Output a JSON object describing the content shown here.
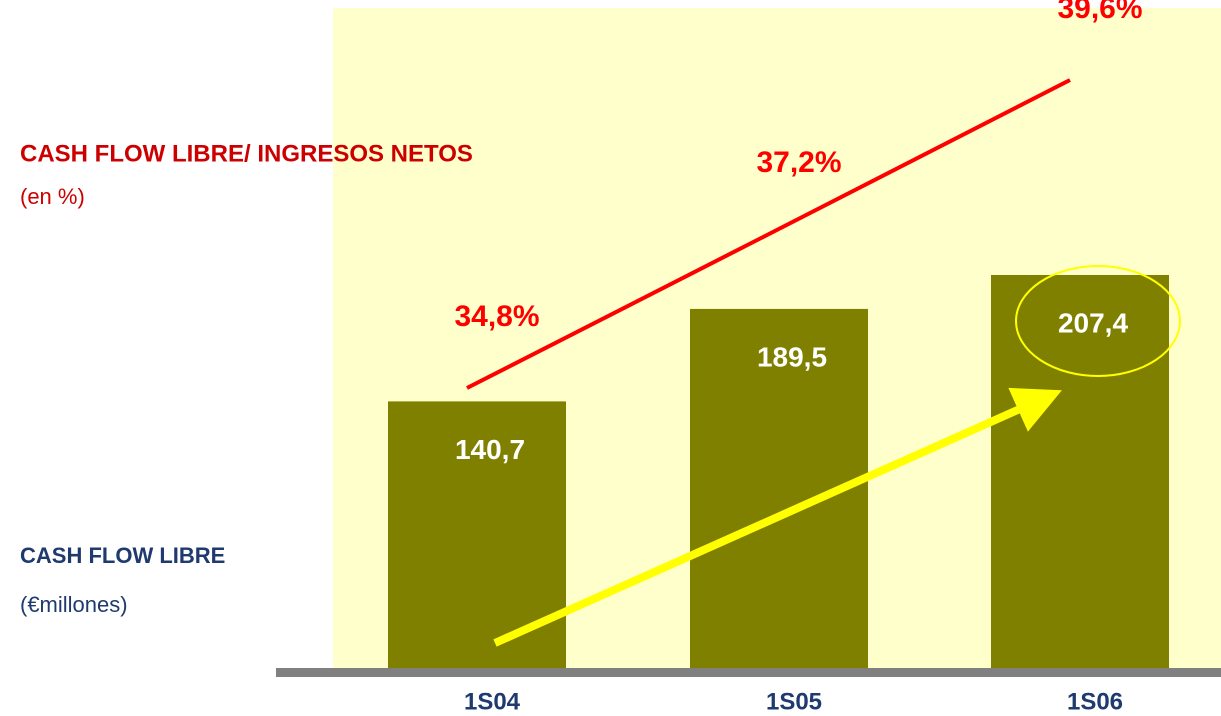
{
  "chart_data": {
    "type": "bar_line",
    "categories": [
      "1S04",
      "1S05",
      "1S06"
    ],
    "series": [
      {
        "name": "CASH FLOW LIBRE",
        "unit": "(€millones)",
        "color": "#808000",
        "values": [
          140.7,
          189.5,
          207.4
        ],
        "value_labels": [
          "140,7",
          "189,5",
          "207,4"
        ]
      },
      {
        "name": "CASH FLOW LIBRE/ INGRESOS NETOS",
        "unit": "(en %)",
        "color": "#ff0000",
        "values": [
          34.8,
          37.2,
          39.6
        ],
        "value_labels": [
          "34,8%",
          "37,2%",
          "39,6%"
        ]
      }
    ]
  }
}
